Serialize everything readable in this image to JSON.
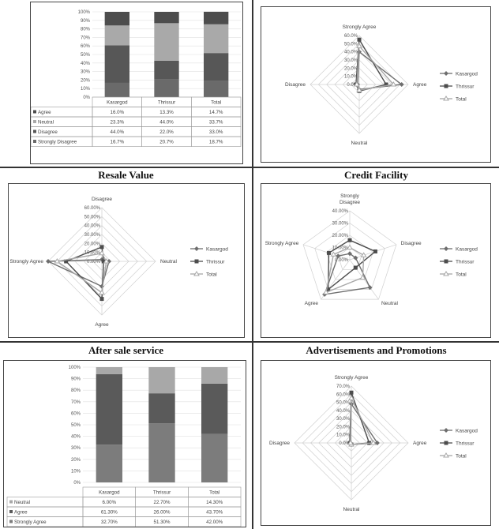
{
  "panels": {
    "p1": {
      "title": ""
    },
    "p2": {
      "title": ""
    },
    "p3": {
      "title": "Resale Value"
    },
    "p4": {
      "title": "Credit Facility"
    },
    "p5": {
      "title": "After sale service"
    },
    "p6": {
      "title": "Advertisements and Promotions"
    }
  },
  "colors": {
    "Kasargod": "#6e6e6e",
    "Thrissur": "#4d4d4d",
    "Total": "#a8a8a8",
    "Agree": "#5a5a5a",
    "Neutral": "#a6a6a6",
    "Disagree": "#4a4a4a",
    "Strongly Disagree": "#666666",
    "Strongly Agree": "#7a7a7a"
  },
  "chart_data": [
    {
      "id": "p1",
      "type": "bar",
      "stacked": "percent",
      "categories": [
        "Kasargod",
        "Thrissur",
        "Total"
      ],
      "yticks": [
        "0%",
        "10%",
        "20%",
        "30%",
        "40%",
        "50%",
        "60%",
        "70%",
        "80%",
        "90%",
        "100%"
      ],
      "series": [
        {
          "name": "Strongly Disagree",
          "values": [
            16.7,
            20.7,
            18.7
          ],
          "labels": [
            "16.7%",
            "20.7%",
            "18.7%"
          ]
        },
        {
          "name": "Disagree",
          "values": [
            44.0,
            22.0,
            33.0
          ],
          "labels": [
            "44.0%",
            "22.0%",
            "33.0%"
          ]
        },
        {
          "name": "Neutral",
          "values": [
            23.3,
            44.0,
            33.7
          ],
          "labels": [
            "23.3%",
            "44.0%",
            "33.7%"
          ]
        },
        {
          "name": "Agree",
          "values": [
            16.0,
            13.3,
            14.7
          ],
          "labels": [
            "16.0%",
            "13.3%",
            "14.7%"
          ]
        }
      ],
      "table_order": [
        "Agree",
        "Neutral",
        "Disagree",
        "Strongly Disagree"
      ]
    },
    {
      "id": "p2",
      "type": "radar",
      "axes": [
        "Strongly Agree",
        "Agree",
        "Neutral",
        "Disagree"
      ],
      "max": 60,
      "ticks": [
        "0.0%",
        "10.0%",
        "20.0%",
        "30.0%",
        "40.0%",
        "50.0%",
        "60.0%"
      ],
      "series": [
        {
          "name": "Kasargod",
          "values": [
            40,
            52,
            6,
            2
          ]
        },
        {
          "name": "Thrissur",
          "values": [
            55,
            33,
            8,
            4
          ]
        },
        {
          "name": "Total",
          "values": [
            47,
            42,
            7,
            3
          ]
        }
      ]
    },
    {
      "id": "p3",
      "type": "radar",
      "axes": [
        "Disagree",
        "Neutral",
        "Agree",
        "Strongly Agree"
      ],
      "max": 60,
      "ticks": [
        "0.00%",
        "10.00%",
        "20.00%",
        "30.00%",
        "40.00%",
        "50.00%",
        "60.00%"
      ],
      "series": [
        {
          "name": "Kasargod",
          "values": [
            2,
            8,
            28,
            60
          ]
        },
        {
          "name": "Thrissur",
          "values": [
            16,
            2,
            42,
            40
          ]
        },
        {
          "name": "Total",
          "values": [
            9,
            5,
            35,
            50
          ]
        }
      ]
    },
    {
      "id": "p4",
      "type": "radar",
      "axes": [
        "Strongly Disagree",
        "Disagree",
        "Neutral",
        "Agree",
        "Strongly Agree"
      ],
      "max": 40,
      "ticks": [
        "0.00%",
        "10.00%",
        "20.00%",
        "30.00%",
        "40.00%"
      ],
      "series": [
        {
          "name": "Kasargod",
          "values": [
            5,
            5,
            28,
            35,
            10
          ]
        },
        {
          "name": "Thrissur",
          "values": [
            16,
            22,
            8,
            30,
            18
          ]
        },
        {
          "name": "Total",
          "values": [
            10,
            12,
            18,
            33,
            14
          ]
        }
      ]
    },
    {
      "id": "p5",
      "type": "bar",
      "stacked": "percent",
      "categories": [
        "Kasargod",
        "Thrissur",
        "Total"
      ],
      "yticks": [
        "0%",
        "10%",
        "20%",
        "30%",
        "40%",
        "50%",
        "60%",
        "70%",
        "80%",
        "90%",
        "100%"
      ],
      "series": [
        {
          "name": "Strongly Agree",
          "values": [
            32.7,
            51.3,
            42.0
          ],
          "labels": [
            "32.70%",
            "51.30%",
            "42.00%"
          ]
        },
        {
          "name": "Agree",
          "values": [
            61.3,
            26.0,
            43.7
          ],
          "labels": [
            "61.30%",
            "26.00%",
            "43.70%"
          ]
        },
        {
          "name": "Neutral",
          "values": [
            6.0,
            22.7,
            14.3
          ],
          "labels": [
            "6.00%",
            "22.70%",
            "14.30%"
          ]
        }
      ],
      "table_order": [
        "Neutral",
        "Agree",
        "Strongly Agree"
      ]
    },
    {
      "id": "p6",
      "type": "radar",
      "axes": [
        "Strongly Agree",
        "Agree",
        "Neutral",
        "Disagree"
      ],
      "max": 70,
      "ticks": [
        "0.0%",
        "10.0%",
        "20.0%",
        "30.0%",
        "40.0%",
        "50.0%",
        "60.0%",
        "70.0%"
      ],
      "series": [
        {
          "name": "Kasargod",
          "values": [
            48,
            32,
            2,
            1
          ]
        },
        {
          "name": "Thrissur",
          "values": [
            62,
            22,
            2,
            2
          ]
        },
        {
          "name": "Total",
          "values": [
            55,
            27,
            2,
            1
          ]
        }
      ]
    }
  ],
  "legend": [
    "Kasargod",
    "Thrissur",
    "Total"
  ]
}
